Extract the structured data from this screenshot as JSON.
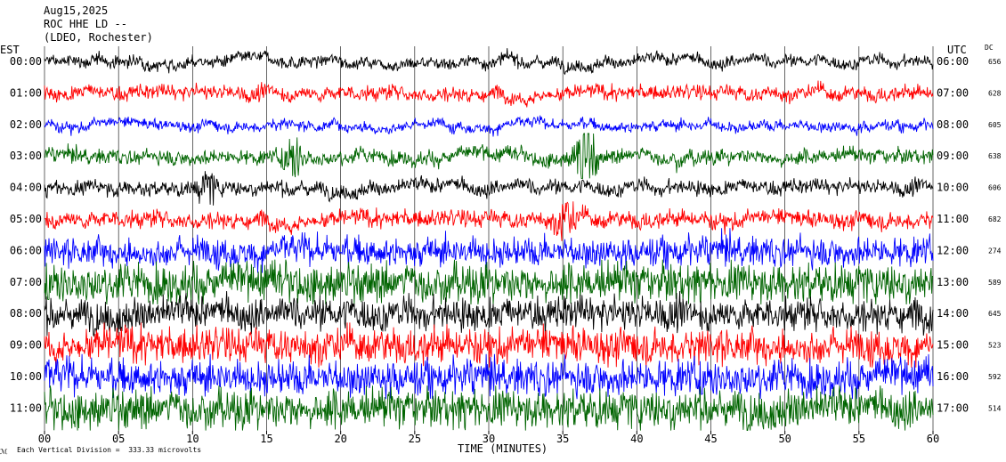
{
  "header": {
    "date": "Aug15,2025",
    "station": "ROC HHE LD --",
    "network": "(LDEO, Rochester)"
  },
  "left_axis_title": "EST",
  "right_axis_title": "UTC",
  "dc_title": "DC",
  "footer": {
    "scale_note": "Each Vertical Division =  333.33 microvolts"
  },
  "colors": {
    "black": "#000000",
    "red": "#ff0000",
    "blue": "#0000ff",
    "green": "#006400",
    "grid": "#000000"
  },
  "chart_data": {
    "type": "line",
    "title": "ROC HHE LD --",
    "xlabel": "TIME (MINUTES)",
    "ylabel": "",
    "xlim": [
      0,
      60
    ],
    "x_ticks": [
      "00",
      "05",
      "10",
      "15",
      "20",
      "25",
      "30",
      "35",
      "40",
      "45",
      "50",
      "55",
      "60"
    ],
    "series": [
      {
        "est": "00:00",
        "utc": "06:00",
        "dc": "656",
        "color": "black",
        "amplitude": 0.18,
        "events": []
      },
      {
        "est": "01:00",
        "utc": "07:00",
        "dc": "628",
        "color": "red",
        "amplitude": 0.22,
        "events": []
      },
      {
        "est": "02:00",
        "utc": "08:00",
        "dc": "605",
        "color": "blue",
        "amplitude": 0.16,
        "events": []
      },
      {
        "est": "03:00",
        "utc": "09:00",
        "dc": "638",
        "color": "green",
        "amplitude": 0.22,
        "events": [
          {
            "minute": 36.5,
            "amplitude": 1.6
          },
          {
            "minute": 16.8,
            "amplitude": 0.6
          }
        ]
      },
      {
        "est": "04:00",
        "utc": "10:00",
        "dc": "606",
        "color": "black",
        "amplitude": 0.22,
        "events": [
          {
            "minute": 11.0,
            "amplitude": 0.5
          }
        ]
      },
      {
        "est": "05:00",
        "utc": "11:00",
        "dc": "682",
        "color": "red",
        "amplitude": 0.26,
        "events": [
          {
            "minute": 35.2,
            "amplitude": 0.6
          }
        ]
      },
      {
        "est": "06:00",
        "utc": "12:00",
        "dc": "274",
        "color": "blue",
        "amplitude": 0.45,
        "events": []
      },
      {
        "est": "07:00",
        "utc": "13:00",
        "dc": "589",
        "color": "green",
        "amplitude": 0.6,
        "events": []
      },
      {
        "est": "08:00",
        "utc": "14:00",
        "dc": "645",
        "color": "black",
        "amplitude": 0.5,
        "events": []
      },
      {
        "est": "09:00",
        "utc": "15:00",
        "dc": "523",
        "color": "red",
        "amplitude": 0.55,
        "events": []
      },
      {
        "est": "10:00",
        "utc": "16:00",
        "dc": "592",
        "color": "blue",
        "amplitude": 0.55,
        "events": []
      },
      {
        "est": "11:00",
        "utc": "17:00",
        "dc": "514",
        "color": "green",
        "amplitude": 0.6,
        "events": []
      }
    ]
  }
}
